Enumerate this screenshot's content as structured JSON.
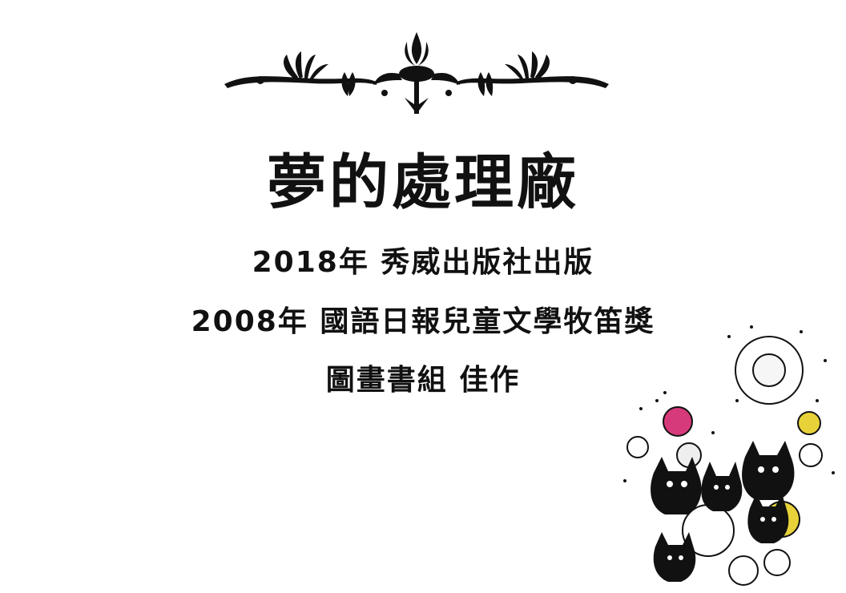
{
  "title": "夢的處理廠",
  "lines": [
    "2018年 秀威出版社出版",
    "2008年 國語日報兒童文學牧笛獎",
    "圖畫書組 佳作"
  ],
  "decorations": {
    "ornament": "black-floral-divider-icon",
    "illustration": "black-cats-with-bubbles-illustration"
  },
  "colors": {
    "text": "#111111",
    "background": "#ffffff",
    "accent_pink": "#d63a7a",
    "accent_yellow": "#e8d23a"
  }
}
